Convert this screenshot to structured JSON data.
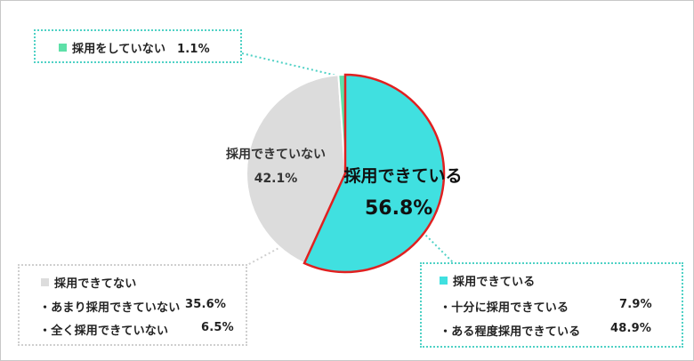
{
  "chart_data": {
    "type": "pie",
    "slices": [
      {
        "label": "採用できている",
        "value": 56.8,
        "color": "#40e0e0"
      },
      {
        "label": "採用できていない",
        "value": 42.1,
        "color": "#dcdcdc"
      },
      {
        "label": "採用をしていない",
        "value": 1.1,
        "color": "#5ee0a8"
      }
    ],
    "highlight_stroke": "#e02020",
    "legend_boxes": {
      "not_hired": {
        "label": "採用をしていない",
        "value_text": "1.1%"
      },
      "hired": {
        "title": "採用できている",
        "items": [
          {
            "label": "・十分に採用できている",
            "value_text": "7.9%"
          },
          {
            "label": "・ある程度採用できている",
            "value_text": "48.9%"
          }
        ]
      },
      "not_able": {
        "title": "採用できてない",
        "items": [
          {
            "label": "・あまり採用できていない",
            "value_text": "35.6%"
          },
          {
            "label": "・全く採用できていない",
            "value_text": "6.5%"
          }
        ]
      }
    },
    "pie_labels": {
      "hired_label": "採用できている",
      "hired_value": "56.8%",
      "not_able_label": "採用できていない",
      "not_able_value": "42.1%"
    }
  }
}
